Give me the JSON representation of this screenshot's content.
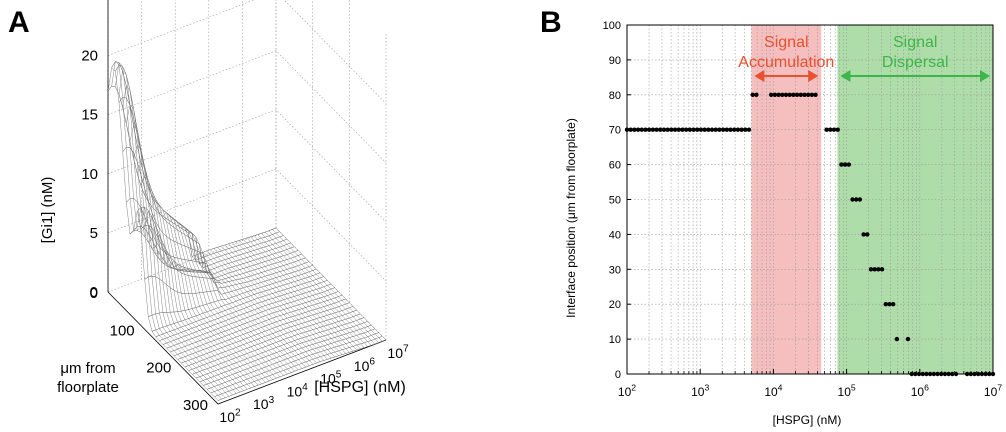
{
  "panels": [
    {
      "letter": "A"
    },
    {
      "letter": "B"
    }
  ],
  "chart_data": [
    {
      "type": "surface3d",
      "title": "",
      "zlabel": "[Gi1] (nM)",
      "ylabel": "μm from floorplate",
      "ylabel_lines": [
        "μm from",
        "floorplate"
      ],
      "xlabel": "[HSPG] (nM)",
      "z_ticks": [
        "0",
        "5",
        "10",
        "15",
        "20"
      ],
      "y_ticks": [
        "0",
        "100",
        "200",
        "300"
      ],
      "x_ticks": [
        {
          "base": "10",
          "exp": "2"
        },
        {
          "base": "10",
          "exp": "3"
        },
        {
          "base": "10",
          "exp": "4"
        },
        {
          "base": "10",
          "exp": "5"
        },
        {
          "base": "10",
          "exp": "6"
        },
        {
          "base": "10",
          "exp": "7"
        }
      ],
      "zlim": [
        0,
        22
      ],
      "ylim": [
        0,
        300
      ],
      "x_scale": "log",
      "xlim": [
        100,
        10000000
      ],
      "grid": true
    },
    {
      "type": "scatter",
      "title": "",
      "xlabel": "[HSPG] (nM)",
      "ylabel": "Interface position (μm from floorplate)",
      "x_scale": "log",
      "xlim": [
        100,
        10000000
      ],
      "ylim": [
        0,
        100
      ],
      "grid": true,
      "y_ticks": [
        "0",
        "10",
        "20",
        "30",
        "40",
        "50",
        "60",
        "70",
        "80",
        "90",
        "100"
      ],
      "x_ticks": [
        {
          "base": "10",
          "exp": "2"
        },
        {
          "base": "10",
          "exp": "3"
        },
        {
          "base": "10",
          "exp": "4"
        },
        {
          "base": "10",
          "exp": "5"
        },
        {
          "base": "10",
          "exp": "6"
        },
        {
          "base": "10",
          "exp": "7"
        }
      ],
      "regions": [
        {
          "label_lines": [
            "Signal",
            "Accumulation"
          ],
          "x_start": 5000,
          "x_end": 45000,
          "color": "#f4b8b8",
          "text_color": "#e8502e",
          "arrow_color": "#e8502e"
        },
        {
          "label_lines": [
            "Signal",
            "Dispersal"
          ],
          "x_start": 75000,
          "x_end": 10000000,
          "color": "#a6d9a0",
          "text_color": "#3cb54a",
          "arrow_color": "#3cb54a"
        }
      ],
      "point_color": "#000000",
      "series": [
        {
          "x_start": 100,
          "x_end": 10000000,
          "count": 100,
          "steps": [
            {
              "x_until": 5000,
              "y": 70
            },
            {
              "x_until": 45000,
              "y": 80
            },
            {
              "x_until": 78000,
              "y": 70
            },
            {
              "x_until": 110000,
              "y": 60
            },
            {
              "x_until": 160000,
              "y": 50
            },
            {
              "x_until": 210000,
              "y": 40
            },
            {
              "x_until": 330000,
              "y": 30
            },
            {
              "x_until": 450000,
              "y": 20
            },
            {
              "x_until": 700000,
              "y": 10
            },
            {
              "x_until": 10000000,
              "y": 0
            }
          ],
          "gaps_log10": [
            [
              3.8,
              3.95
            ],
            [
              4.62,
              4.72
            ],
            [
              5.72,
              5.82
            ],
            [
              6.5,
              6.6
            ]
          ]
        }
      ]
    }
  ]
}
